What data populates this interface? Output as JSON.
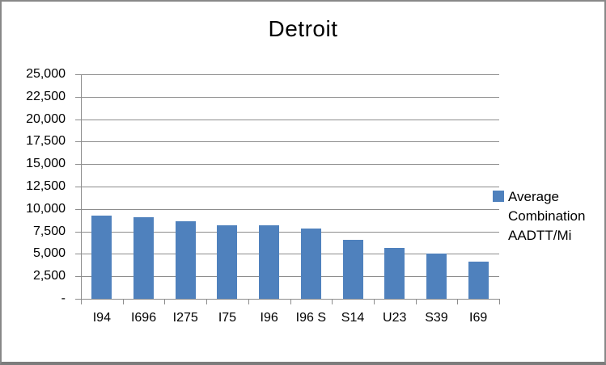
{
  "chart": {
    "legend": {
      "marker_color": "#4F81BD"
    }
  },
  "chart_data": {
    "type": "bar",
    "title": "Detroit",
    "categories": [
      "I94",
      "I696",
      "I275",
      "I75",
      "I96",
      "I96 S",
      "S14",
      "U23",
      "S39",
      "I69"
    ],
    "series": [
      {
        "name": "Average Combination AADTT/Mi",
        "values": [
          9300,
          9100,
          8600,
          8200,
          8200,
          7800,
          6600,
          5700,
          5000,
          4100
        ]
      }
    ],
    "xlabel": "",
    "ylabel": "",
    "ylim": [
      0,
      25000
    ],
    "ytick_interval": 2500,
    "ytick_labels_top_down": [
      "25,000",
      "22,500",
      "20,000",
      "17,500",
      "15,000",
      "12,500",
      "10,000",
      "7,500",
      "5,000",
      "2,500",
      "-"
    ],
    "grid": true,
    "legend_position": "right",
    "colors": {
      "bar": "#4F81BD",
      "gridline": "#8C8C8C",
      "axis": "#8C8C8C",
      "text": "#000000",
      "background": "#FFFFFF",
      "border": "#888888"
    }
  }
}
